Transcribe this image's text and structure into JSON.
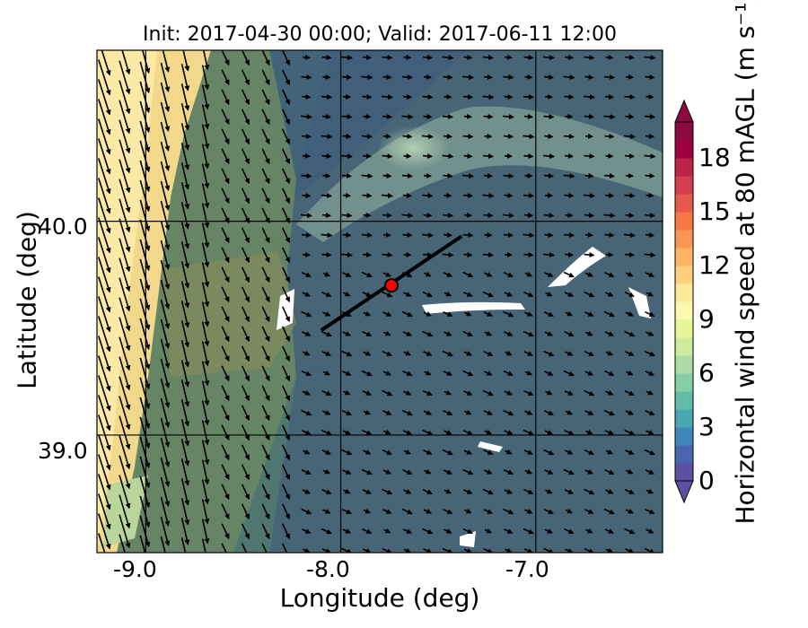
{
  "map": {
    "title": "Init: 2017-04-30 00:00; Valid: 2017-06-11 12:00",
    "xlabel": "Longitude (deg)",
    "ylabel": "Latitude (deg)",
    "x_ticks": [
      "-9.0",
      "-8.0",
      "-7.0"
    ],
    "y_ticks": [
      "40.0",
      "39.0"
    ],
    "extent": {
      "lon": [
        -9.25,
        -6.35
      ],
      "lat": [
        38.45,
        40.8
      ]
    },
    "gridlines": {
      "lon": [
        -9.0,
        -8.0,
        -7.0
      ],
      "lat": [
        40.0,
        39.0
      ]
    },
    "marker": {
      "lon": -7.74,
      "lat": 39.7,
      "color": "#ff0000"
    },
    "transect": {
      "start": {
        "lon": -8.1,
        "lat": 39.49
      },
      "end": {
        "lon": -7.38,
        "lat": 39.93
      }
    }
  },
  "colorbar": {
    "label": "Horizontal wind speed at 80 mAGL (m s⁻¹)",
    "ticks": [
      "0",
      "3",
      "6",
      "9",
      "12",
      "15",
      "18"
    ],
    "min": 0,
    "max": 20,
    "colors": [
      "#5e4fa2",
      "#4a66ad",
      "#3f86bc",
      "#4aa5b5",
      "#63bca7",
      "#84cfa5",
      "#abdda4",
      "#cdeb9c",
      "#e6f598",
      "#fbf8b0",
      "#fee89a",
      "#fdd07e",
      "#fdb465",
      "#f99656",
      "#f57748",
      "#e55a4a",
      "#d53e4f",
      "#bd2249",
      "#9e0142",
      "#8b0a3f"
    ]
  }
}
